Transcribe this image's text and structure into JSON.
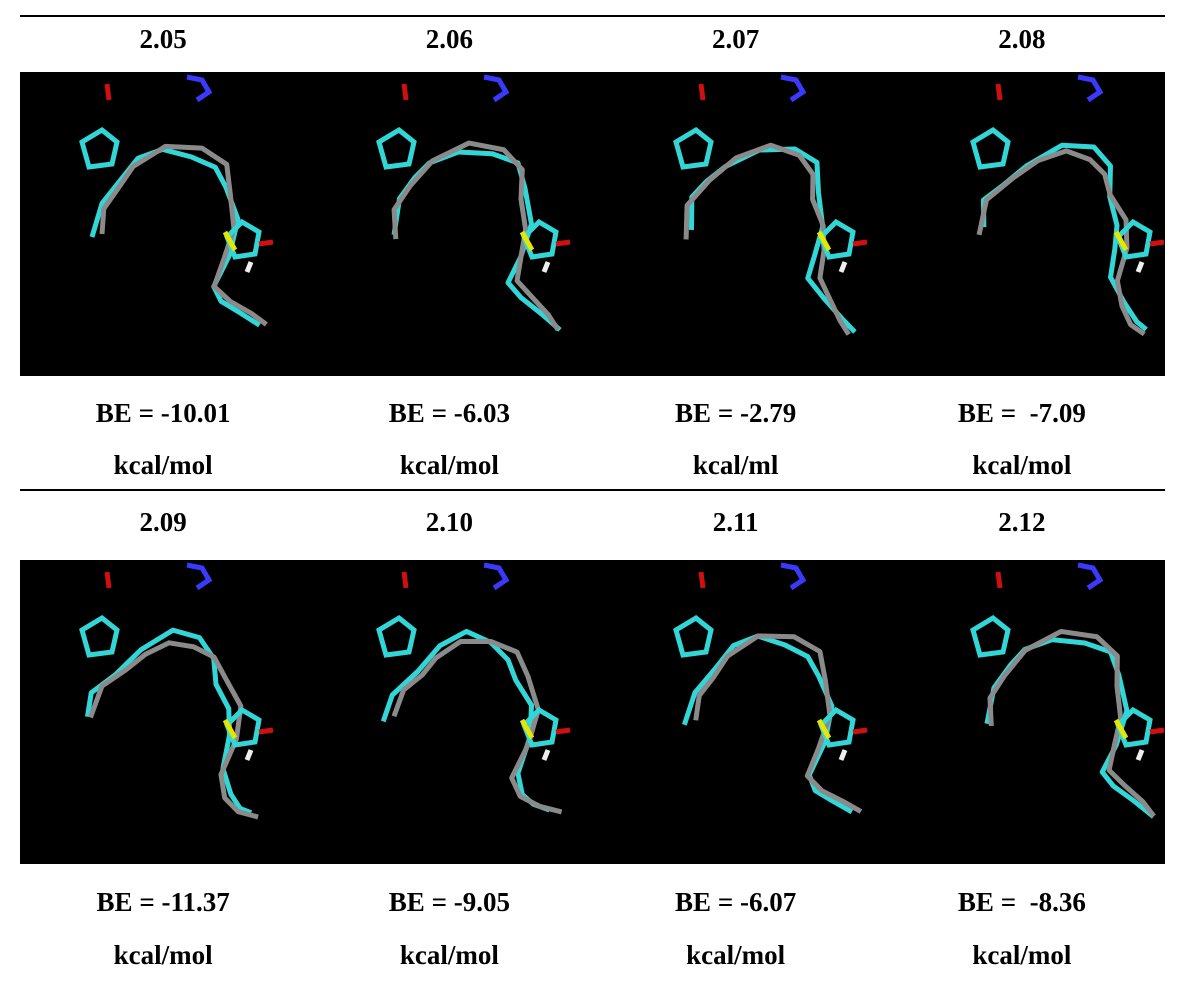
{
  "table": {
    "rows": [
      {
        "cells": [
          {
            "id": "2.05",
            "energy": "BE = -10.01",
            "unit": "kcal/mol"
          },
          {
            "id": "2.06",
            "energy": "BE = -6.03",
            "unit": "kcal/mol"
          },
          {
            "id": "2.07",
            "energy": "BE = -2.79",
            "unit": "kcal/ml"
          },
          {
            "id": "2.08",
            "energy": "BE =  -7.09",
            "unit": "kcal/mol"
          }
        ]
      },
      {
        "cells": [
          {
            "id": "2.09",
            "energy": "BE = -11.37",
            "unit": "kcal/mol"
          },
          {
            "id": "2.10",
            "energy": "BE = -9.05",
            "unit": "kcal/mol"
          },
          {
            "id": "2.11",
            "energy": "BE = -6.07",
            "unit": "kcal/mol"
          },
          {
            "id": "2.12",
            "energy": "BE =  -8.36",
            "unit": "kcal/mol"
          }
        ]
      }
    ]
  }
}
